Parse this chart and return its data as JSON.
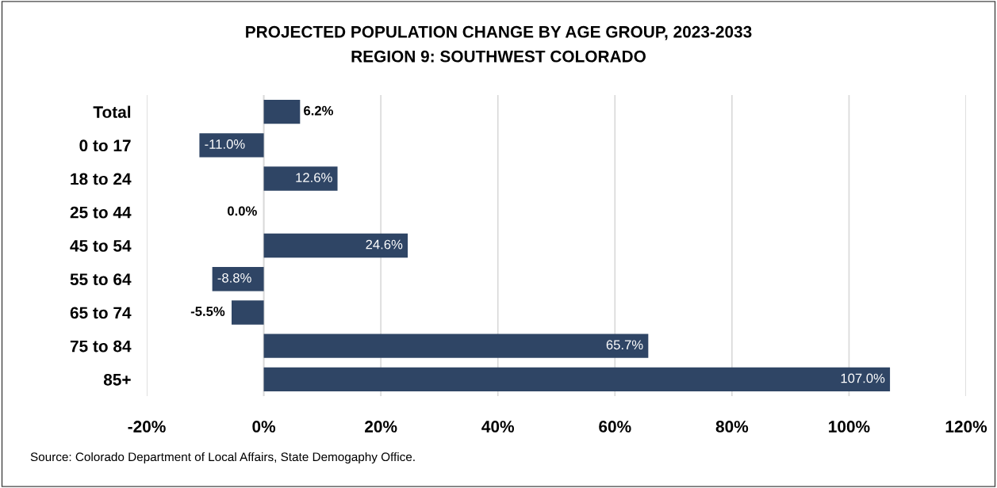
{
  "chart_data": {
    "type": "bar",
    "orientation": "horizontal",
    "title": "PROJECTED POPULATION CHANGE BY AGE GROUP, 2023-2033",
    "subtitle": "REGION 9: SOUTHWEST COLORADO",
    "categories": [
      "Total",
      "0 to 17",
      "18 to 24",
      "25 to 44",
      "45 to 54",
      "55 to 64",
      "65 to 74",
      "75 to 84",
      "85+"
    ],
    "values": [
      6.2,
      -11.0,
      12.6,
      0.0,
      24.6,
      -8.8,
      -5.5,
      65.7,
      107.0
    ],
    "value_labels": [
      "6.2%",
      "-11.0%",
      "12.6%",
      "0.0%",
      "24.6%",
      "-8.8%",
      "-5.5%",
      "65.7%",
      "107.0%"
    ],
    "color": "#2f4565",
    "xlim": [
      -20,
      120
    ],
    "xticks": [
      {
        "value": -20,
        "label": "-20%"
      },
      {
        "value": 0,
        "label": "0%"
      },
      {
        "value": 20,
        "label": "20%"
      },
      {
        "value": 40,
        "label": "40%"
      },
      {
        "value": 60,
        "label": "60%"
      },
      {
        "value": 80,
        "label": "80%"
      },
      {
        "value": 100,
        "label": "100%"
      },
      {
        "value": 120,
        "label": "120%"
      }
    ],
    "grid": "x",
    "annotations": [
      "Source: Colorado Department of Local Affairs, State Demogaphy Office."
    ]
  }
}
